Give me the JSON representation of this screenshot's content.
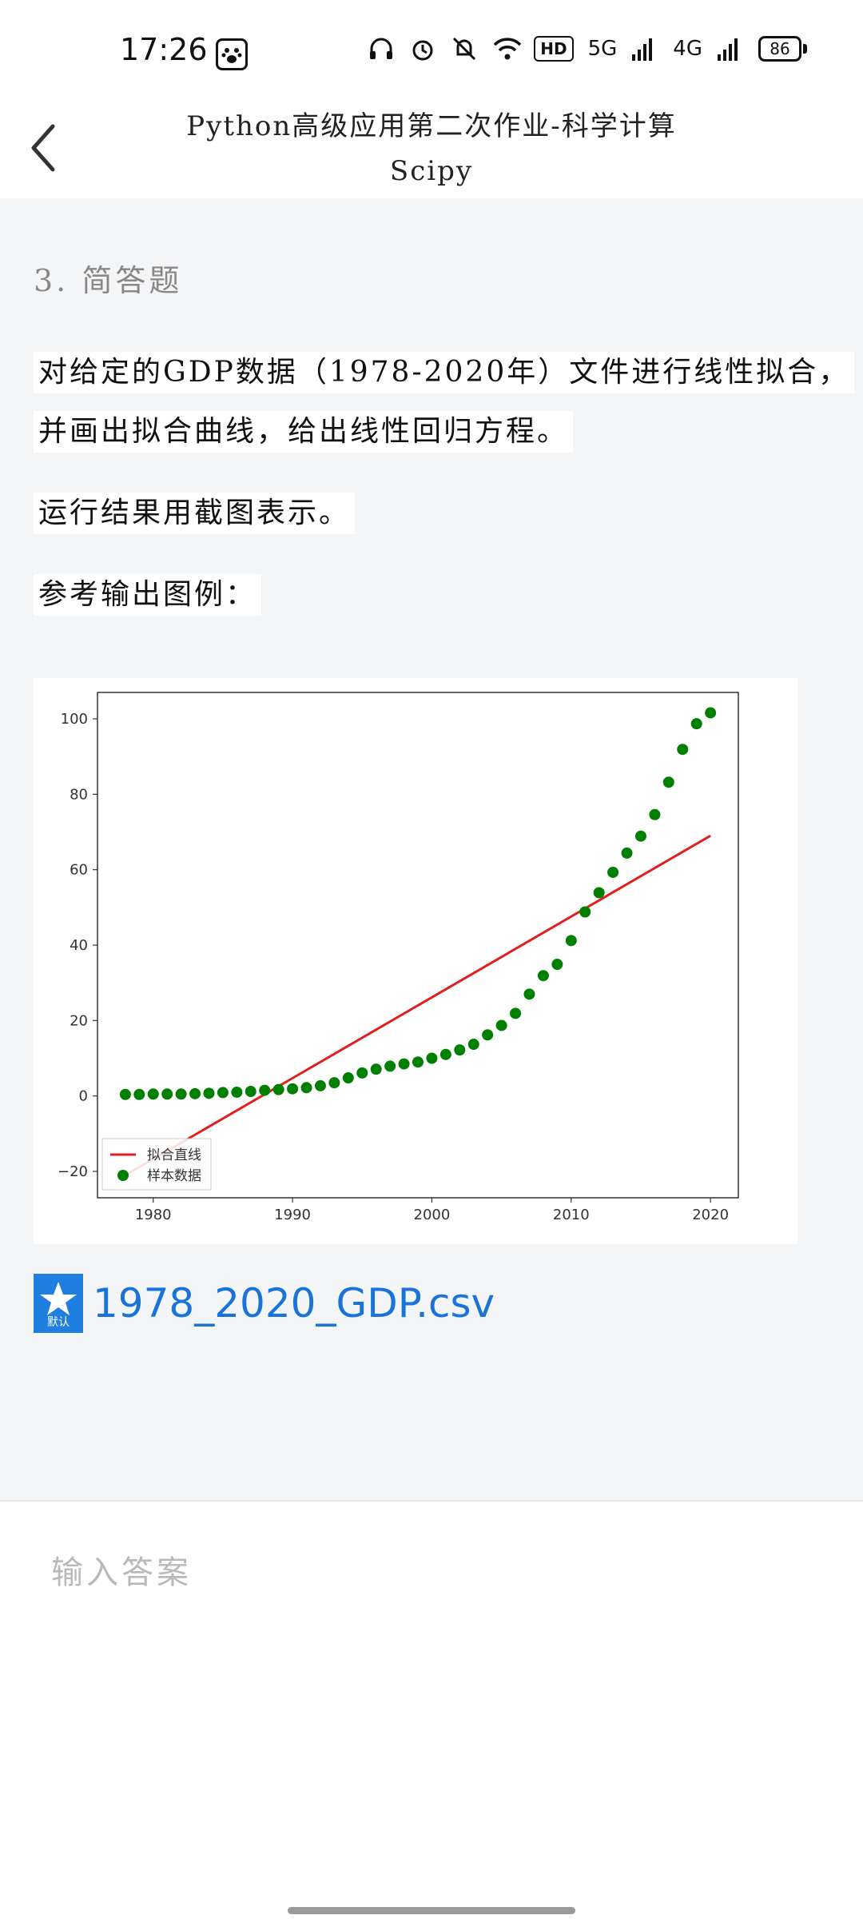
{
  "status": {
    "time": "17:26",
    "network1": "5G",
    "network2": "4G",
    "hd": "HD",
    "battery": "86"
  },
  "header": {
    "title_line1": "Python高级应用第二次作业-科学计算",
    "title_line2": "Scipy"
  },
  "question": {
    "type_label": "3. 简答题",
    "line1": "对给定的GDP数据（1978-2020年）文件进行线性拟合，",
    "line2": "并画出拟合曲线，给出线性回归方程。",
    "line3": "运行结果用截图表示。",
    "line4": "参考输出图例："
  },
  "attachment": {
    "caption": "默认",
    "filename": "1978_2020_GDP.csv"
  },
  "answer": {
    "placeholder": "输入答案"
  },
  "colors": {
    "line": "#e02020",
    "points": "#008000",
    "link": "#1a73d9"
  },
  "chart_data": {
    "type": "scatter",
    "x_ticks": [
      1980,
      1990,
      2000,
      2010,
      2020
    ],
    "y_ticks": [
      -20,
      0,
      20,
      40,
      60,
      80,
      100
    ],
    "xlim": [
      1976,
      2022
    ],
    "ylim": [
      -27,
      107
    ],
    "series": [
      {
        "name": "拟合直线",
        "type": "line",
        "x": [
          1978,
          2020
        ],
        "y": [
          -21,
          69
        ]
      },
      {
        "name": "样本数据",
        "type": "scatter",
        "x": [
          1978,
          1979,
          1980,
          1981,
          1982,
          1983,
          1984,
          1985,
          1986,
          1987,
          1988,
          1989,
          1990,
          1991,
          1992,
          1993,
          1994,
          1995,
          1996,
          1997,
          1998,
          1999,
          2000,
          2001,
          2002,
          2003,
          2004,
          2005,
          2006,
          2007,
          2008,
          2009,
          2010,
          2011,
          2012,
          2013,
          2014,
          2015,
          2016,
          2017,
          2018,
          2019,
          2020
        ],
        "y": [
          0.4,
          0.4,
          0.5,
          0.5,
          0.5,
          0.6,
          0.7,
          0.9,
          1.0,
          1.2,
          1.5,
          1.7,
          1.9,
          2.2,
          2.7,
          3.5,
          4.8,
          6.1,
          7.1,
          7.9,
          8.5,
          9.0,
          10.0,
          11.0,
          12.2,
          13.7,
          16.2,
          18.7,
          21.9,
          27.0,
          31.9,
          34.9,
          41.2,
          48.8,
          53.9,
          59.3,
          64.4,
          68.9,
          74.6,
          83.2,
          91.9,
          98.7,
          101.6
        ]
      }
    ],
    "legend": {
      "location": "lower-left"
    }
  }
}
